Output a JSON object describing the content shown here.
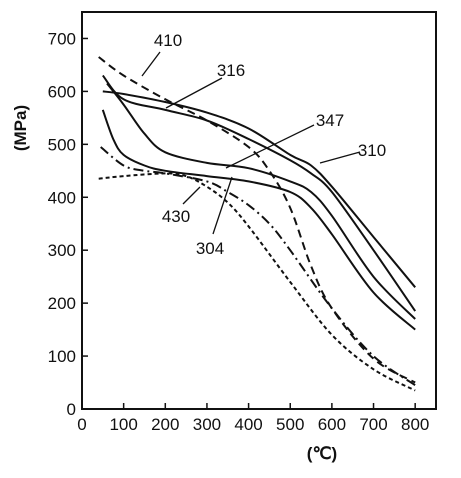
{
  "chart_data": {
    "type": "line",
    "title": "",
    "xlabel": "(℃)",
    "ylabel": "(MPa)",
    "xlim": [
      0,
      850
    ],
    "ylim": [
      0,
      750
    ],
    "x_ticks": [
      "0",
      "100",
      "200",
      "300",
      "400",
      "500",
      "600",
      "700",
      "800"
    ],
    "y_ticks": [
      "0",
      "100",
      "200",
      "300",
      "400",
      "500",
      "600",
      "700"
    ],
    "grid": false,
    "series": [
      {
        "name": "410",
        "style": "dashed",
        "x": [
          40,
          100,
          200,
          300,
          400,
          450,
          500,
          550,
          600,
          700,
          800
        ],
        "y": [
          665,
          630,
          585,
          545,
          495,
          450,
          380,
          270,
          190,
          95,
          50
        ]
      },
      {
        "name": "316",
        "style": "solid",
        "x": [
          50,
          100,
          200,
          300,
          400,
          500,
          550,
          600,
          700,
          800
        ],
        "y": [
          630,
          585,
          565,
          545,
          510,
          470,
          445,
          410,
          300,
          185
        ]
      },
      {
        "name": "310",
        "style": "solid",
        "x": [
          50,
          100,
          200,
          300,
          400,
          500,
          550,
          600,
          700,
          800
        ],
        "y": [
          600,
          595,
          580,
          560,
          530,
          480,
          460,
          420,
          325,
          230
        ]
      },
      {
        "name": "347",
        "style": "solid",
        "x": [
          60,
          100,
          150,
          200,
          300,
          400,
          500,
          550,
          600,
          700,
          800
        ],
        "y": [
          615,
          575,
          520,
          485,
          465,
          455,
          430,
          410,
          365,
          250,
          170
        ]
      },
      {
        "name": "304",
        "style": "solid",
        "x": [
          50,
          75,
          100,
          150,
          200,
          300,
          400,
          500,
          550,
          600,
          700,
          800
        ],
        "y": [
          565,
          510,
          480,
          460,
          450,
          440,
          430,
          410,
          380,
          330,
          220,
          150
        ]
      },
      {
        "name": "430",
        "style": "dash-dot",
        "x": [
          45,
          100,
          150,
          200,
          300,
          350,
          400,
          450,
          500,
          600,
          700,
          800
        ],
        "y": [
          495,
          460,
          450,
          445,
          430,
          410,
          385,
          350,
          300,
          190,
          100,
          45
        ]
      },
      {
        "name": "",
        "style": "dotted",
        "x": [
          40,
          100,
          200,
          250,
          300,
          350,
          400,
          500,
          600,
          700,
          800
        ],
        "y": [
          435,
          440,
          445,
          440,
          420,
          390,
          345,
          240,
          140,
          75,
          35
        ]
      }
    ]
  }
}
